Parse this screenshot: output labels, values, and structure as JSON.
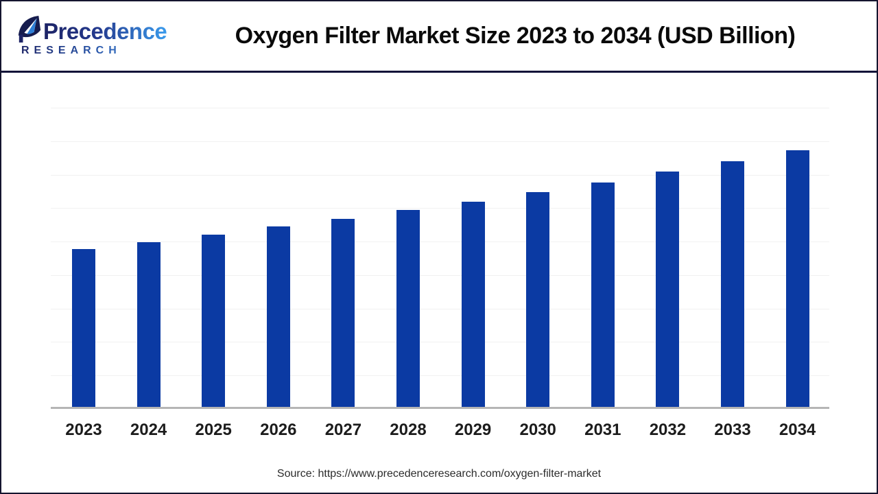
{
  "header": {
    "brand_name": "Precedence",
    "brand_subtitle": "RESEARCH",
    "title": "Oxygen Filter Market Size 2023 to 2034 (USD Billion)"
  },
  "chart_data": {
    "type": "bar",
    "title": "Oxygen Filter Market Size 2023 to 2034 (USD Billion)",
    "categories": [
      "2023",
      "2024",
      "2025",
      "2026",
      "2027",
      "2028",
      "2029",
      "2030",
      "2031",
      "2032",
      "2033",
      "2034"
    ],
    "values": [
      2.37,
      2.48,
      2.59,
      2.71,
      2.83,
      2.96,
      3.09,
      3.23,
      3.38,
      3.54,
      3.7,
      3.86
    ],
    "unit": "USD Billion",
    "xlabel": "",
    "ylabel": "",
    "ylim": [
      0,
      4.5
    ],
    "gridline_step": 0.5,
    "grid": "horizontal-only, no y-axis tick labels",
    "legend": "none",
    "bar_color": "#0b3aa3"
  },
  "footer": {
    "source_text": "Source: https://www.precedenceresearch.com/oxygen-filter-market"
  },
  "colors": {
    "bar": "#0b3aa3",
    "header_separator": "#0f1238",
    "axis_line": "#b5b5b5",
    "gridline": "#f1f1f1",
    "logo_gradient_start": "#1d2365",
    "logo_gradient_end": "#3a9bed"
  }
}
